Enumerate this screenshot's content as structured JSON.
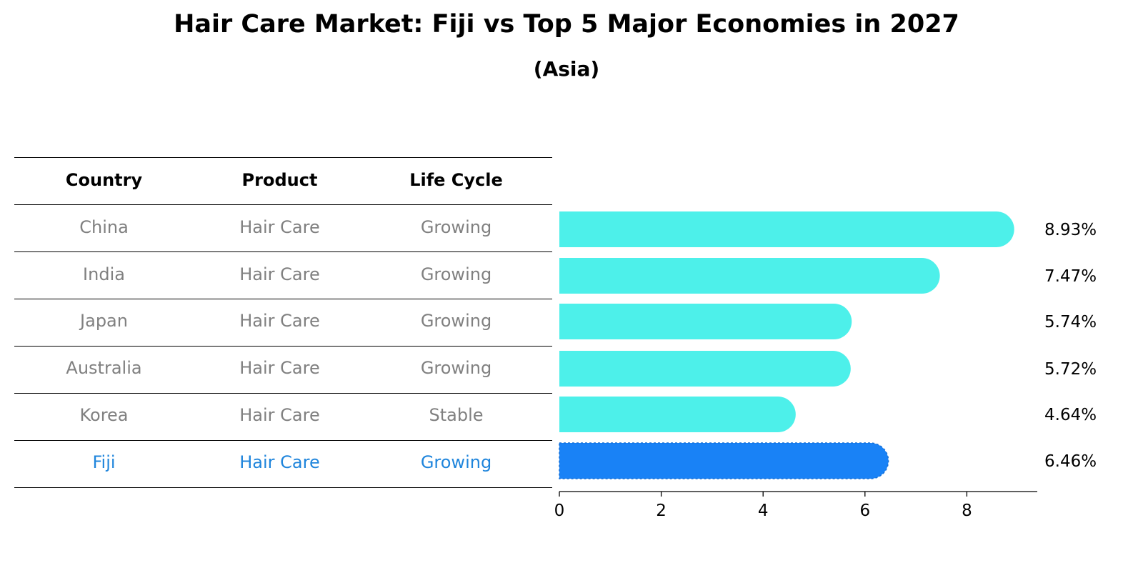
{
  "chart_data": {
    "type": "bar",
    "title": "Hair Care Market: Fiji vs Top 5 Major Economies in 2027",
    "subtitle": "(Asia)",
    "table": {
      "headers": [
        "Country",
        "Product",
        "Life Cycle"
      ],
      "rows": [
        {
          "country": "China",
          "product": "Hair Care",
          "life_cycle": "Growing"
        },
        {
          "country": "India",
          "product": "Hair Care",
          "life_cycle": "Growing"
        },
        {
          "country": "Japan",
          "product": "Hair Care",
          "life_cycle": "Growing"
        },
        {
          "country": "Australia",
          "product": "Hair Care",
          "life_cycle": "Growing"
        },
        {
          "country": "Korea",
          "product": "Hair Care",
          "life_cycle": "Stable"
        },
        {
          "country": "Fiji",
          "product": "Hair Care",
          "life_cycle": "Growing"
        }
      ]
    },
    "categories": [
      "China",
      "India",
      "Japan",
      "Australia",
      "Korea",
      "Fiji"
    ],
    "values": [
      8.93,
      7.47,
      5.74,
      5.72,
      4.64,
      6.46
    ],
    "value_labels": [
      "8.93%",
      "7.47%",
      "5.74%",
      "5.72%",
      "4.64%",
      "6.46%"
    ],
    "highlight": "Fiji",
    "xticks": [
      "0",
      "2",
      "4",
      "6",
      "8"
    ],
    "xlim": [
      0,
      9.4
    ],
    "colors": {
      "bar": "#4df0ea",
      "highlight_bar": "#1982f6",
      "highlight_text": "#1f85dc",
      "row_text": "#808080"
    }
  }
}
